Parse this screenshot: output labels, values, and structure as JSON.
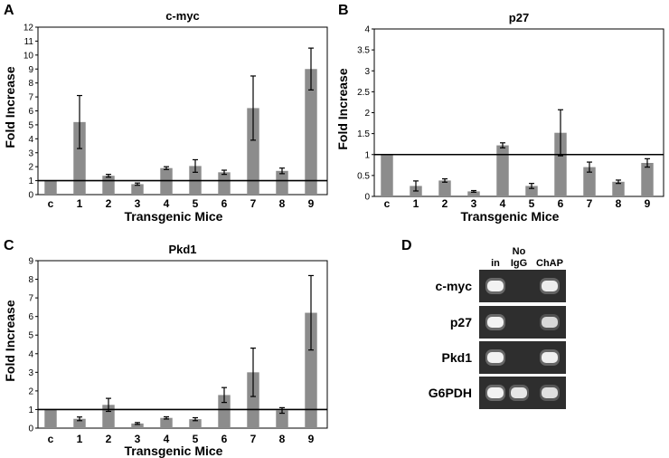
{
  "panels": {
    "A": "A",
    "B": "B",
    "C": "C",
    "D": "D"
  },
  "chart_data": [
    {
      "type": "bar",
      "title": "c-myc",
      "xlabel": "Transgenic Mice",
      "ylabel": "Fold Increase",
      "categories": [
        "c",
        "1",
        "2",
        "3",
        "4",
        "5",
        "6",
        "7",
        "8",
        "9"
      ],
      "values": [
        1.0,
        5.2,
        1.35,
        0.75,
        1.9,
        2.05,
        1.6,
        6.2,
        1.7,
        9.0
      ],
      "errors": [
        0.0,
        1.9,
        0.1,
        0.08,
        0.1,
        0.45,
        0.15,
        2.3,
        0.2,
        1.5
      ],
      "ylim": [
        0,
        12
      ],
      "yticks": [
        "0",
        "1",
        "2",
        "3",
        "4",
        "5",
        "6",
        "7",
        "8",
        "9",
        "10",
        "11",
        "12"
      ],
      "reference_line": 1
    },
    {
      "type": "bar",
      "title": "p27",
      "xlabel": "Transgenic Mice",
      "ylabel": "Fold Increase",
      "categories": [
        "c",
        "1",
        "2",
        "3",
        "4",
        "5",
        "6",
        "7",
        "8",
        "9"
      ],
      "values": [
        1.0,
        0.25,
        0.38,
        0.12,
        1.22,
        0.25,
        1.52,
        0.7,
        0.35,
        0.8
      ],
      "errors": [
        0.0,
        0.12,
        0.04,
        0.02,
        0.06,
        0.06,
        0.55,
        0.12,
        0.04,
        0.1
      ],
      "ylim": [
        0,
        4
      ],
      "yticks": [
        "0",
        "0.5",
        "1",
        "1.5",
        "2",
        "2.5",
        "3",
        "3.5",
        "4"
      ],
      "reference_line": 1
    },
    {
      "type": "bar",
      "title": "Pkd1",
      "xlabel": "Transgenic Mice",
      "ylabel": "Fold Increase",
      "categories": [
        "c",
        "1",
        "2",
        "3",
        "4",
        "5",
        "6",
        "7",
        "8",
        "9"
      ],
      "values": [
        1.0,
        0.5,
        1.25,
        0.25,
        0.55,
        0.48,
        1.78,
        3.0,
        0.95,
        6.2
      ],
      "errors": [
        0.0,
        0.1,
        0.35,
        0.05,
        0.06,
        0.08,
        0.4,
        1.3,
        0.15,
        2.0
      ],
      "ylim": [
        0,
        9
      ],
      "yticks": [
        "0",
        "1",
        "2",
        "3",
        "4",
        "5",
        "6",
        "7",
        "8",
        "9"
      ],
      "reference_line": 1
    }
  ],
  "gel": {
    "lanes": [
      "in",
      "No IgG",
      "ChAP"
    ],
    "lane_no": "No",
    "lane_igg": "IgG",
    "rows": [
      "c-myc",
      "p27",
      "Pkd1",
      "G6PDH"
    ]
  }
}
